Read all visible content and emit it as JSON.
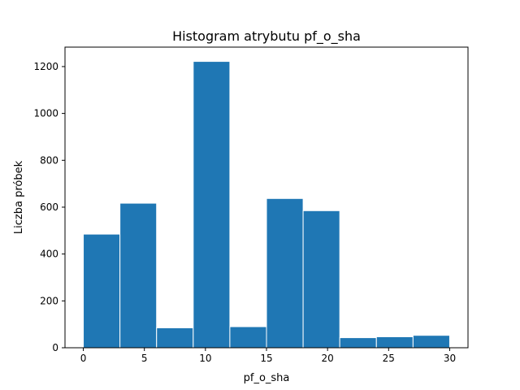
{
  "chart_data": {
    "type": "bar",
    "title": "Histogram atrybutu pf_o_sha",
    "xlabel": "pf_o_sha",
    "ylabel": "Liczba próbek",
    "bin_edges": [
      0,
      3,
      6,
      9,
      12,
      15,
      18,
      21,
      24,
      27,
      30
    ],
    "values": [
      485,
      617,
      85,
      1222,
      90,
      637,
      585,
      43,
      47,
      53
    ],
    "xlim": [
      -1.5,
      31.5
    ],
    "ylim": [
      0,
      1283
    ],
    "xticks": [
      0,
      5,
      10,
      15,
      20,
      25,
      30
    ],
    "yticks": [
      0,
      200,
      400,
      600,
      800,
      1000,
      1200
    ],
    "grid": false,
    "bar_color": "#1f77b4",
    "edge_color": "#ffffff"
  }
}
